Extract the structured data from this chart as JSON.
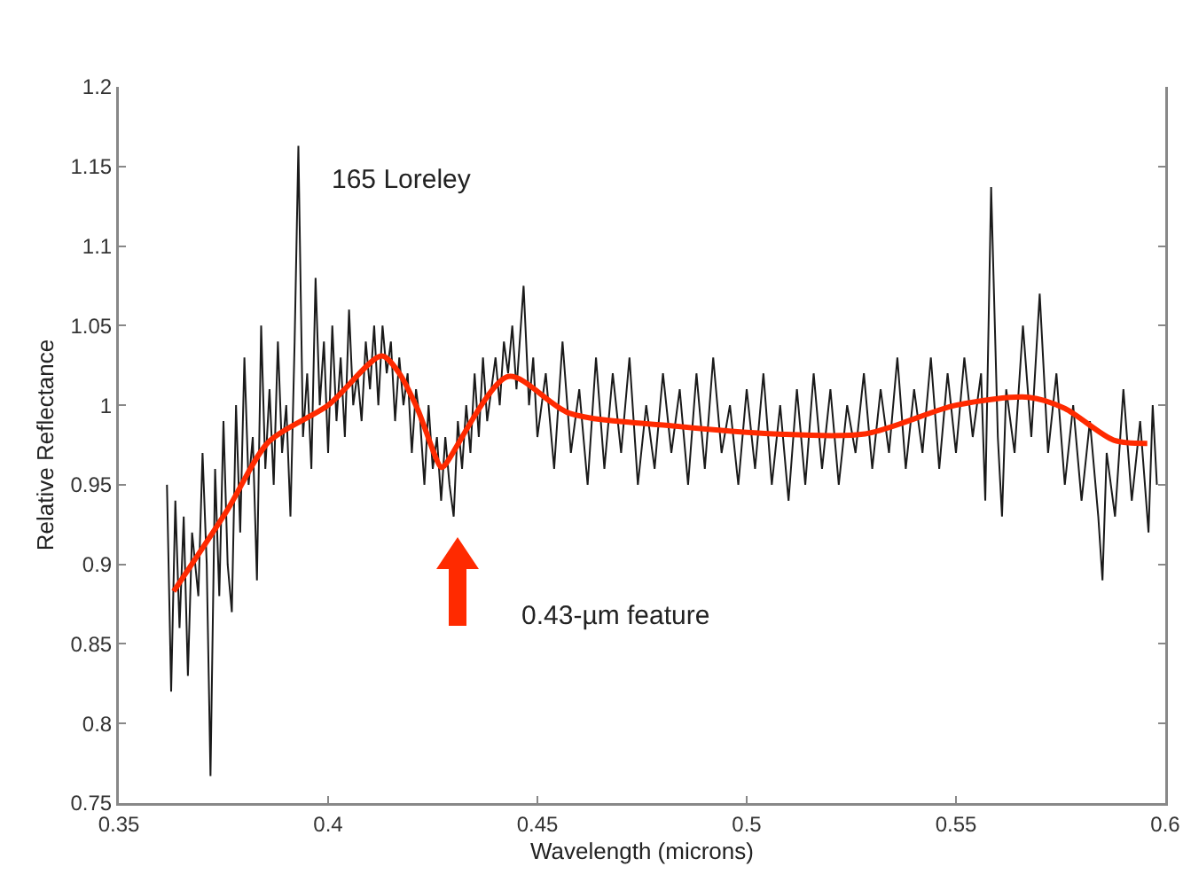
{
  "chart_data": {
    "type": "line",
    "title": "165 Loreley",
    "xlabel": "Wavelength (microns)",
    "ylabel": "Relative Reflectance",
    "xlim": [
      0.35,
      0.6
    ],
    "xticks": [
      0.35,
      0.4,
      0.45,
      0.5,
      0.55,
      0.6
    ],
    "ylim": [
      0.75,
      1.2
    ],
    "yticks": [
      0.75,
      0.8,
      0.85,
      0.9,
      0.95,
      1,
      1.05,
      1.1,
      1.15,
      1.2
    ],
    "grid": false,
    "marker": "none",
    "line_style": "solid",
    "annotations": [
      "0.43-µm feature"
    ],
    "series": [
      {
        "color": "#1a1a1a",
        "x": [
          0.3615,
          0.3625,
          0.3635,
          0.3645,
          0.3655,
          0.3665,
          0.3675,
          0.369,
          0.37,
          0.371,
          0.3719,
          0.373,
          0.374,
          0.375,
          0.376,
          0.377,
          0.378,
          0.379,
          0.38,
          0.381,
          0.382,
          0.383,
          0.384,
          0.385,
          0.386,
          0.387,
          0.388,
          0.389,
          0.39,
          0.391,
          0.392,
          0.3929,
          0.394,
          0.395,
          0.396,
          0.397,
          0.398,
          0.399,
          0.4,
          0.401,
          0.402,
          0.403,
          0.404,
          0.405,
          0.406,
          0.407,
          0.408,
          0.409,
          0.41,
          0.411,
          0.412,
          0.413,
          0.414,
          0.415,
          0.416,
          0.417,
          0.418,
          0.419,
          0.42,
          0.421,
          0.422,
          0.423,
          0.424,
          0.425,
          0.426,
          0.427,
          0.428,
          0.429,
          0.43,
          0.431,
          0.432,
          0.433,
          0.434,
          0.435,
          0.436,
          0.437,
          0.438,
          0.439,
          0.44,
          0.441,
          0.442,
          0.443,
          0.444,
          0.445,
          0.4467,
          0.448,
          0.449,
          0.45,
          0.452,
          0.454,
          0.456,
          0.458,
          0.46,
          0.462,
          0.464,
          0.466,
          0.468,
          0.47,
          0.472,
          0.474,
          0.476,
          0.478,
          0.48,
          0.482,
          0.484,
          0.486,
          0.488,
          0.49,
          0.492,
          0.494,
          0.496,
          0.498,
          0.5,
          0.502,
          0.504,
          0.506,
          0.508,
          0.51,
          0.512,
          0.514,
          0.516,
          0.518,
          0.52,
          0.522,
          0.524,
          0.526,
          0.528,
          0.53,
          0.532,
          0.534,
          0.536,
          0.538,
          0.54,
          0.542,
          0.544,
          0.546,
          0.548,
          0.55,
          0.552,
          0.554,
          0.556,
          0.557,
          0.5584,
          0.56,
          0.561,
          0.562,
          0.564,
          0.566,
          0.568,
          0.57,
          0.572,
          0.574,
          0.576,
          0.578,
          0.58,
          0.582,
          0.584,
          0.585,
          0.586,
          0.588,
          0.59,
          0.592,
          0.594,
          0.596,
          0.597,
          0.598
        ],
        "values": [
          0.95,
          0.82,
          0.94,
          0.86,
          0.93,
          0.83,
          0.92,
          0.88,
          0.97,
          0.9,
          0.767,
          0.96,
          0.88,
          0.99,
          0.9,
          0.87,
          1.0,
          0.92,
          1.03,
          0.95,
          0.98,
          0.89,
          1.05,
          0.96,
          1.01,
          0.95,
          1.04,
          0.97,
          1.0,
          0.93,
          1.04,
          1.163,
          0.98,
          1.02,
          0.96,
          1.08,
          1.0,
          1.04,
          0.97,
          1.05,
          0.99,
          1.03,
          0.98,
          1.06,
          1.0,
          1.02,
          0.99,
          1.04,
          1.01,
          1.05,
          1.0,
          1.05,
          1.02,
          1.04,
          0.99,
          1.03,
          1.0,
          1.02,
          0.97,
          1.01,
          0.99,
          0.95,
          1.0,
          0.96,
          0.98,
          0.94,
          0.98,
          0.95,
          0.93,
          0.99,
          0.96,
          1.0,
          0.97,
          1.02,
          0.98,
          1.03,
          0.99,
          1.01,
          1.03,
          1.0,
          1.04,
          1.02,
          1.05,
          1.01,
          1.075,
          1.0,
          1.03,
          0.98,
          1.02,
          0.96,
          1.04,
          0.97,
          1.01,
          0.95,
          1.03,
          0.96,
          1.02,
          0.97,
          1.03,
          0.95,
          1.0,
          0.96,
          1.02,
          0.97,
          1.01,
          0.95,
          1.02,
          0.96,
          1.03,
          0.97,
          1.0,
          0.95,
          1.01,
          0.96,
          1.02,
          0.95,
          1.0,
          0.94,
          1.01,
          0.95,
          1.02,
          0.96,
          1.01,
          0.95,
          1.0,
          0.97,
          1.02,
          0.96,
          1.01,
          0.97,
          1.03,
          0.96,
          1.01,
          0.97,
          1.03,
          0.96,
          1.02,
          0.97,
          1.03,
          0.98,
          1.02,
          0.94,
          1.137,
          0.98,
          0.93,
          1.01,
          0.97,
          1.05,
          0.98,
          1.07,
          0.97,
          1.02,
          0.95,
          1.0,
          0.94,
          0.99,
          0.93,
          0.89,
          0.97,
          0.93,
          1.01,
          0.94,
          0.99,
          0.92,
          1.0,
          0.95
        ]
      },
      {
        "color": "#ff2a00",
        "x": [
          0.3631,
          0.3759,
          0.3858,
          0.4,
          0.4128,
          0.417,
          0.4213,
          0.427,
          0.4278,
          0.443,
          0.4576,
          0.4823,
          0.5065,
          0.5283,
          0.55,
          0.5674,
          0.576,
          0.5877,
          0.5957
        ],
        "values": [
          0.883,
          0.934,
          0.977,
          1.0,
          1.031,
          1.02,
          0.998,
          0.961,
          0.962,
          1.018,
          0.995,
          0.987,
          0.982,
          0.982,
          1.0,
          1.005,
          0.998,
          0.978,
          0.976
        ]
      }
    ]
  }
}
